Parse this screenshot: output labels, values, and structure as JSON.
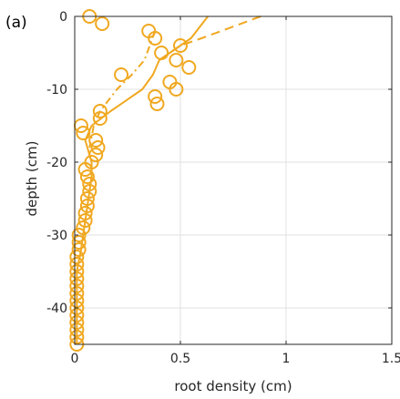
{
  "chart_data": {
    "type": "scatter",
    "panel_label": "(a)",
    "xlabel": "root density (cm)",
    "ylabel": "depth (cm)",
    "xlim": [
      0,
      1.5
    ],
    "ylim": [
      -45,
      0
    ],
    "xticks": [
      0,
      0.5,
      1,
      1.5
    ],
    "xtick_labels": [
      "0",
      "0.5",
      "1",
      "1.5"
    ],
    "yticks": [
      0,
      -10,
      -20,
      -30,
      -40
    ],
    "ytick_labels": [
      "0",
      "-10",
      "-20",
      "-30",
      "-40"
    ],
    "grid": true,
    "color": "#F0A820",
    "series": [
      {
        "style": "markers-circle",
        "x": [
          0.07,
          0.13,
          0.35,
          0.38,
          0.5,
          0.41,
          0.48,
          0.54,
          0.22,
          0.45,
          0.48,
          0.38,
          0.39,
          0.12,
          0.12,
          0.03,
          0.04,
          0.1,
          0.11,
          0.1,
          0.08,
          0.05,
          0.06,
          0.07,
          0.07,
          0.06,
          0.06,
          0.05,
          0.05,
          0.04,
          0.02,
          0.02,
          0.02,
          0.01,
          0.01,
          0.01,
          0.01,
          0.01,
          0.01,
          0.01,
          0.01,
          0.01,
          0.01,
          0.01,
          0.01,
          0.01
        ],
        "y": [
          0,
          -1,
          -2,
          -3,
          -4,
          -5,
          -6,
          -7,
          -8,
          -9,
          -10,
          -11,
          -12,
          -13,
          -14,
          -15,
          -16,
          -17,
          -18,
          -19,
          -20,
          -21,
          -22,
          -23,
          -24,
          -25,
          -26,
          -27,
          -28,
          -29,
          -30,
          -31,
          -32,
          -33,
          -34,
          -35,
          -36,
          -37,
          -38,
          -39,
          -40,
          -41,
          -42,
          -43,
          -44,
          -45
        ]
      },
      {
        "style": "solid",
        "x": [
          0.63,
          0.55,
          0.4,
          0.37,
          0.32,
          0.17,
          0.08,
          0.05,
          0.06,
          0.08,
          0.08,
          0.07,
          0.06,
          0.05,
          0.04,
          0.03,
          0.01,
          0.01
        ],
        "y": [
          0,
          -3,
          -6,
          -8,
          -10,
          -13,
          -15,
          -17,
          -18,
          -20,
          -22,
          -24,
          -26,
          -28,
          -30,
          -32,
          -35,
          -45
        ]
      },
      {
        "style": "dashed",
        "x": [
          0.88,
          0.6,
          0.5,
          0.4
        ],
        "y": [
          0,
          -3,
          -4,
          -6
        ]
      },
      {
        "style": "dash-dot",
        "x": [
          0.38,
          0.33,
          0.27,
          0.2,
          0.12,
          0.09,
          0.07
        ],
        "y": [
          -2,
          -6,
          -8,
          -10,
          -13,
          -15,
          -18
        ]
      }
    ]
  }
}
